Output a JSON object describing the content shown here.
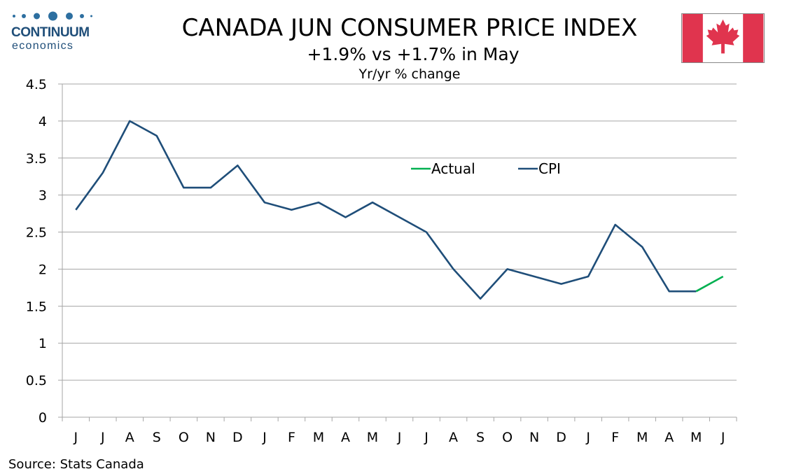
{
  "logo": {
    "word": "CONTINUUM",
    "sub": "economics"
  },
  "header": {
    "title": "CANADA JUN CONSUMER PRICE INDEX",
    "subtitle": "+1.9% vs +1.7% in May",
    "unit": "Yr/yr % change"
  },
  "source": "Source: Stats Canada",
  "colors": {
    "cpi": "#1f4e79",
    "actual": "#00b050",
    "grid": "#a6a6a6",
    "flag_red": "#e0344e"
  },
  "chart_data": {
    "type": "line",
    "title": "CANADA JUN CONSUMER PRICE INDEX",
    "subtitle": "+1.9% vs +1.7% in May",
    "ylabel": "Yr/yr % change",
    "categories": [
      "J",
      "J",
      "A",
      "S",
      "O",
      "N",
      "D",
      "J",
      "F",
      "M",
      "A",
      "M",
      "J",
      "J",
      "A",
      "S",
      "O",
      "N",
      "D",
      "J",
      "F",
      "M",
      "A",
      "M",
      "J"
    ],
    "ylim": [
      0,
      4.5
    ],
    "yticks": [
      "0",
      "0.5",
      "1",
      "1.5",
      "2",
      "2.5",
      "3",
      "3.5",
      "4",
      "4.5"
    ],
    "grid": true,
    "legend_position": "top-center",
    "series": [
      {
        "name": "Actual",
        "color": "#00b050",
        "values": [
          null,
          null,
          null,
          null,
          null,
          null,
          null,
          null,
          null,
          null,
          null,
          null,
          null,
          null,
          null,
          null,
          null,
          null,
          null,
          null,
          null,
          null,
          null,
          1.7,
          1.9
        ]
      },
      {
        "name": "CPI",
        "color": "#1f4e79",
        "values": [
          2.8,
          3.3,
          4.0,
          3.8,
          3.1,
          3.1,
          3.4,
          2.9,
          2.8,
          2.9,
          2.7,
          2.9,
          2.7,
          2.5,
          2.0,
          1.6,
          2.0,
          1.9,
          1.8,
          1.9,
          2.6,
          2.3,
          1.7,
          1.7,
          null
        ]
      }
    ]
  }
}
